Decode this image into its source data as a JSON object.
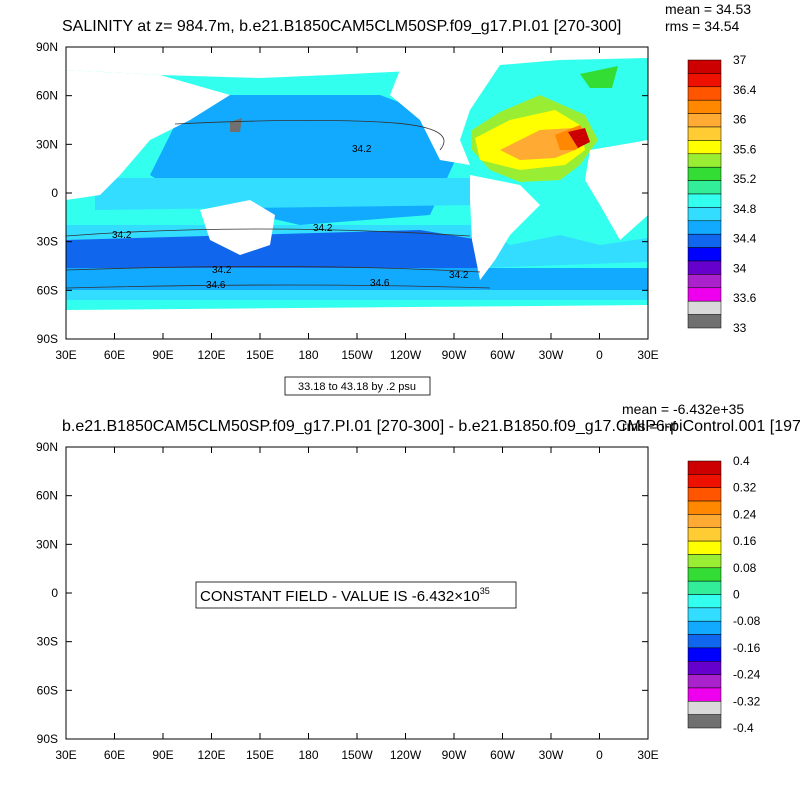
{
  "panel1": {
    "title": "SALINITY at z= 984.7m, b.e21.B1850CAM5CLM50SP.f09_g17.PI.01 [270-300]",
    "mean": "mean = 34.53",
    "rms": "rms = 34.54",
    "info": "33.18 to 43.18 by .2 psu",
    "contour_labels": [
      "34.2",
      "34.2",
      "34.2",
      "34.2",
      "34.6",
      "34.6",
      "34.2"
    ],
    "colorbar": {
      "labels": [
        "37",
        "36.4",
        "36",
        "35.6",
        "35.2",
        "34.8",
        "34.4",
        "34",
        "33.6",
        "33"
      ],
      "colors": [
        "#cc0000",
        "#ee1100",
        "#ff5500",
        "#ff8800",
        "#ffaa33",
        "#ffcc33",
        "#ffff00",
        "#99ee33",
        "#33dd33",
        "#33ee99",
        "#33ffee",
        "#33ddff",
        "#11aaff",
        "#1166ee",
        "#0000ff",
        "#6600cc",
        "#aa22cc",
        "#ee00ee",
        "#d9d9d9",
        "#707070"
      ]
    }
  },
  "panel2": {
    "title": "b.e21.B1850CAM5CLM50SP.f09_g17.PI.01 [270-300] - b.e21.B1850.f09_g17.CMIP6-piControl.001 [197",
    "mean": "mean = -6.432e+35",
    "rms": "rms = inf",
    "note": "CONSTANT FIELD - VALUE IS -6.432×10",
    "note_exp": "35",
    "colorbar": {
      "labels": [
        "0.4",
        "0.32",
        "0.24",
        "0.16",
        "0.08",
        "0",
        "-0.08",
        "-0.16",
        "-0.24",
        "-0.32",
        "-0.4"
      ],
      "colors": [
        "#cc0000",
        "#ee1100",
        "#ff5500",
        "#ff8800",
        "#ffaa33",
        "#ffcc33",
        "#ffff00",
        "#99ee33",
        "#33dd33",
        "#33ee99",
        "#33ffee",
        "#33ddff",
        "#11aaff",
        "#1166ee",
        "#0000ff",
        "#6600cc",
        "#aa22cc",
        "#ee00ee",
        "#d9d9d9",
        "#707070"
      ]
    }
  },
  "axes": {
    "x_ticks": [
      "30E",
      "60E",
      "90E",
      "120E",
      "150E",
      "180",
      "150W",
      "120W",
      "90W",
      "60W",
      "30W",
      "0",
      "30E"
    ],
    "y_ticks": [
      "90N",
      "60N",
      "30N",
      "0",
      "30S",
      "60S",
      "90S"
    ]
  },
  "colors": {
    "land": "#ffffff",
    "band_1": "#11aaff",
    "band_2": "#33ddff",
    "band_3": "#33ffee",
    "band_4": "#1166ee",
    "missing": "#707070"
  }
}
